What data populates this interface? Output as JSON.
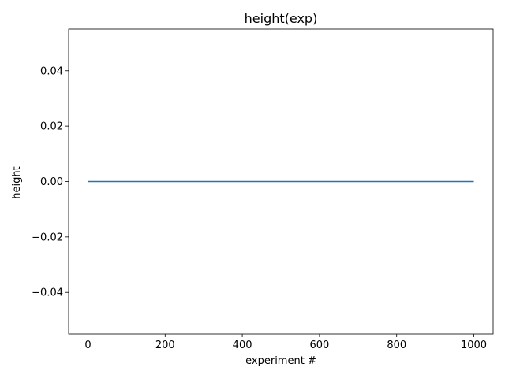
{
  "chart_data": {
    "type": "line",
    "title": "height(exp)",
    "xlabel": "experiment #",
    "ylabel": "height",
    "xlim": [
      -50,
      1050
    ],
    "ylim": [
      -0.055,
      0.055
    ],
    "xticks": [
      0,
      200,
      400,
      600,
      800,
      1000
    ],
    "yticks": [
      -0.04,
      -0.02,
      0.0,
      0.02,
      0.04
    ],
    "xtick_labels": [
      "0",
      "200",
      "400",
      "600",
      "800",
      "1000"
    ],
    "ytick_labels": [
      "−0.04",
      "−0.02",
      "0.00",
      "0.02",
      "0.04"
    ],
    "grid": false,
    "series": [
      {
        "x": [
          0,
          1000
        ],
        "y": [
          0,
          0
        ],
        "color": "#1f77b4"
      }
    ]
  }
}
